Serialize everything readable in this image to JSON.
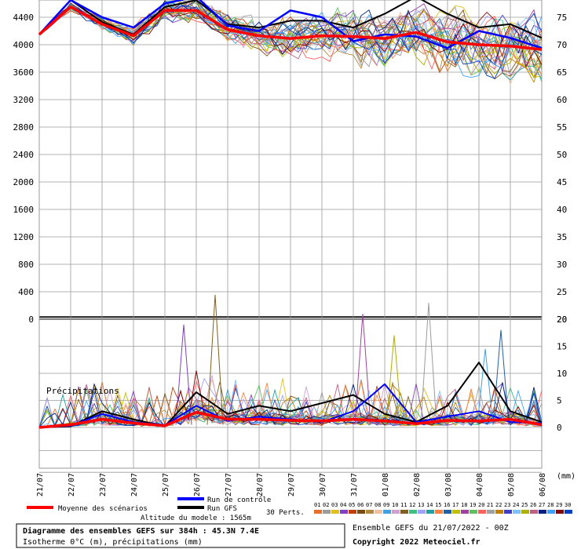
{
  "chart_data": {
    "type": "line",
    "x": [
      "21/07",
      "22/07",
      "23/07",
      "24/07",
      "25/07",
      "26/07",
      "27/07",
      "28/07",
      "29/07",
      "30/07",
      "31/07",
      "01/08",
      "02/08",
      "03/08",
      "04/08",
      "05/08",
      "06/08"
    ],
    "x_unit": "(mm)",
    "top_panel": {
      "left_ticks": [
        "4400",
        "4000",
        "3600",
        "3200",
        "2800",
        "2400",
        "2000",
        "1600",
        "1200",
        "800",
        "400",
        "0"
      ],
      "right_ticks": [
        "75",
        "70",
        "65",
        "60",
        "55",
        "50",
        "45",
        "40",
        "35",
        "30",
        "25",
        "20"
      ],
      "ylim": [
        0,
        4600
      ],
      "series": [
        {
          "name": "Moyenne des scénarios",
          "color": "#ff0000",
          "values": [
            4150,
            4550,
            4300,
            4130,
            4500,
            4500,
            4220,
            4130,
            4090,
            4130,
            4120,
            4090,
            4180,
            4040,
            4000,
            3980,
            3930
          ]
        },
        {
          "name": "Run de contrôle",
          "color": "#0000ff",
          "values": [
            4150,
            4650,
            4400,
            4250,
            4600,
            4700,
            4280,
            4200,
            4500,
            4400,
            4050,
            4150,
            4120,
            3950,
            4200,
            4100,
            3950
          ]
        },
        {
          "name": "Run GFS",
          "color": "#000000",
          "values": [
            4150,
            4650,
            4330,
            4150,
            4550,
            4650,
            4300,
            4250,
            4350,
            4350,
            4250,
            4450,
            4700,
            4450,
            4250,
            4300,
            4100
          ]
        }
      ]
    },
    "bottom_panel": {
      "title": "Précipitations",
      "left_ticks": [
        "0"
      ],
      "right_ticks": [
        "20",
        "15",
        "10",
        "5",
        "0"
      ],
      "ylim": [
        -8,
        20
      ],
      "series": [
        {
          "name": "Moyenne des scénarios",
          "color": "#ff0000",
          "values": [
            0,
            0.5,
            1.5,
            0.8,
            0.3,
            2.8,
            1.5,
            1.5,
            1.3,
            1.2,
            1.5,
            1.2,
            0.7,
            1.3,
            1.2,
            1.5,
            0.5
          ]
        },
        {
          "name": "Run de contrôle",
          "color": "#0000ff",
          "values": [
            0,
            0.3,
            2.5,
            1,
            0.4,
            4,
            1.2,
            2,
            1.5,
            1,
            3,
            8,
            1,
            2,
            3,
            1,
            0.8
          ]
        },
        {
          "name": "Run GFS",
          "color": "#000000",
          "values": [
            0,
            0.2,
            3,
            1.5,
            0.2,
            6.5,
            2.5,
            4,
            3,
            4.5,
            6,
            2.5,
            1,
            4,
            12,
            3,
            1
          ]
        }
      ],
      "peaks": [
        {
          "day": 4.6,
          "value": 19
        },
        {
          "day": 5.6,
          "value": 24.5
        },
        {
          "day": 10.3,
          "value": 21
        },
        {
          "day": 11.3,
          "value": 17
        },
        {
          "day": 12.4,
          "value": 23
        },
        {
          "day": 14.2,
          "value": 14.5
        },
        {
          "day": 14.7,
          "value": 18
        }
      ]
    },
    "legend": {
      "mean": "Moyenne des scénarios",
      "control": "Run de contrôle",
      "gfs": "Run GFS",
      "altitude": "Altitude du modele : 1565m",
      "perts": "30 Perts.",
      "pert_labels": [
        "01",
        "02",
        "03",
        "04",
        "05",
        "06",
        "07",
        "08",
        "09",
        "10",
        "11",
        "12",
        "13",
        "14",
        "15",
        "16",
        "17",
        "18",
        "19",
        "20",
        "21",
        "22",
        "23",
        "24",
        "25",
        "26",
        "27",
        "28",
        "29",
        "30"
      ],
      "pert_colors": [
        "#e8702a",
        "#9b9b9b",
        "#e0c020",
        "#8040c0",
        "#c04000",
        "#7a4a10",
        "#b08a40",
        "#f0c0a0",
        "#40a0e0",
        "#d0a0d0",
        "#806020",
        "#40c080",
        "#a0a0ff",
        "#20a0a0",
        "#ff8040",
        "#2060a0",
        "#c0c000",
        "#a040a0",
        "#60c060",
        "#ff6060",
        "#a0a0a0",
        "#c08000",
        "#4040c0",
        "#80c0ff",
        "#b0b000",
        "#c06080",
        "#002080",
        "#40a0ff",
        "#800000",
        "#0040c0"
      ]
    },
    "footer": {
      "title": "Diagramme des ensembles GEFS sur 384h : 45.3N 7.4E",
      "subtitle": "Isotherme 0°C (m), précipitations (mm)",
      "run_info": "Ensemble GEFS du 21/07/2022 - 00Z",
      "copyright": "Copyright 2022 Meteociel.fr"
    }
  }
}
